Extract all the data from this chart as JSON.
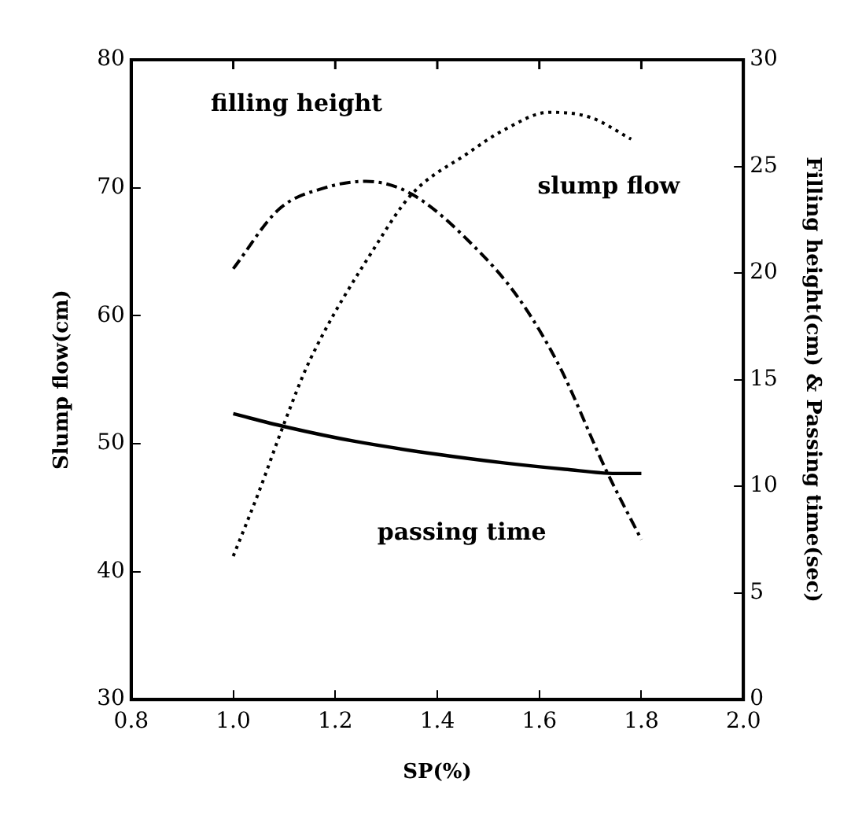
{
  "chart_data": {
    "type": "line",
    "xlabel": "SP(%)",
    "ylabel": "Slump flow(cm)",
    "y2label": "Filling height(cm) & Passing time(sec)",
    "xlim": [
      0.8,
      2.0
    ],
    "xticks": [
      {
        "value": 0.8,
        "label": "0.8"
      },
      {
        "value": 1.0,
        "label": "1.0"
      },
      {
        "value": 1.2,
        "label": "1.2"
      },
      {
        "value": 1.4,
        "label": "1.4"
      },
      {
        "value": 1.6,
        "label": "1.6"
      },
      {
        "value": 1.8,
        "label": "1.8"
      },
      {
        "value": 2.0,
        "label": "2.0"
      }
    ],
    "ylim": [
      30,
      80
    ],
    "yticks": [
      30,
      40,
      50,
      60,
      70,
      80
    ],
    "y2lim": [
      0,
      30
    ],
    "y2ticks": [
      0,
      5,
      10,
      15,
      20,
      25,
      30
    ],
    "grid": false,
    "legend": false,
    "marker": "none",
    "series": [
      {
        "color": "#000000",
        "line_style": "dotted",
        "x": [
          1.0,
          1.05,
          1.1,
          1.15,
          1.28,
          1.35,
          1.46,
          1.53,
          1.62,
          1.7,
          1.78
        ],
        "values": [
          41.2,
          46.2,
          51.6,
          56.5,
          65.5,
          69.5,
          72.7,
          74.5,
          75.9,
          75.5,
          73.8
        ]
      },
      {
        "color": "#000000",
        "line_style": "dashed",
        "axis": "y2",
        "x": [
          1.0,
          1.09,
          1.18,
          1.26,
          1.35,
          1.47,
          1.56,
          1.64,
          1.73,
          1.8
        ],
        "values": [
          20.2,
          23.0,
          24.0,
          24.3,
          23.7,
          21.3,
          18.8,
          15.6,
          10.8,
          7.5
        ]
      },
      {
        "color": "#000000",
        "line_style": "solid",
        "axis": "y2",
        "x": [
          1.0,
          1.1,
          1.24,
          1.4,
          1.53,
          1.65,
          1.75,
          1.8
        ],
        "values": [
          13.4,
          12.8,
          12.1,
          11.5,
          11.1,
          10.8,
          10.6,
          10.6
        ]
      }
    ],
    "annotations": [
      "filling height",
      "slump flow",
      "passing time"
    ]
  }
}
